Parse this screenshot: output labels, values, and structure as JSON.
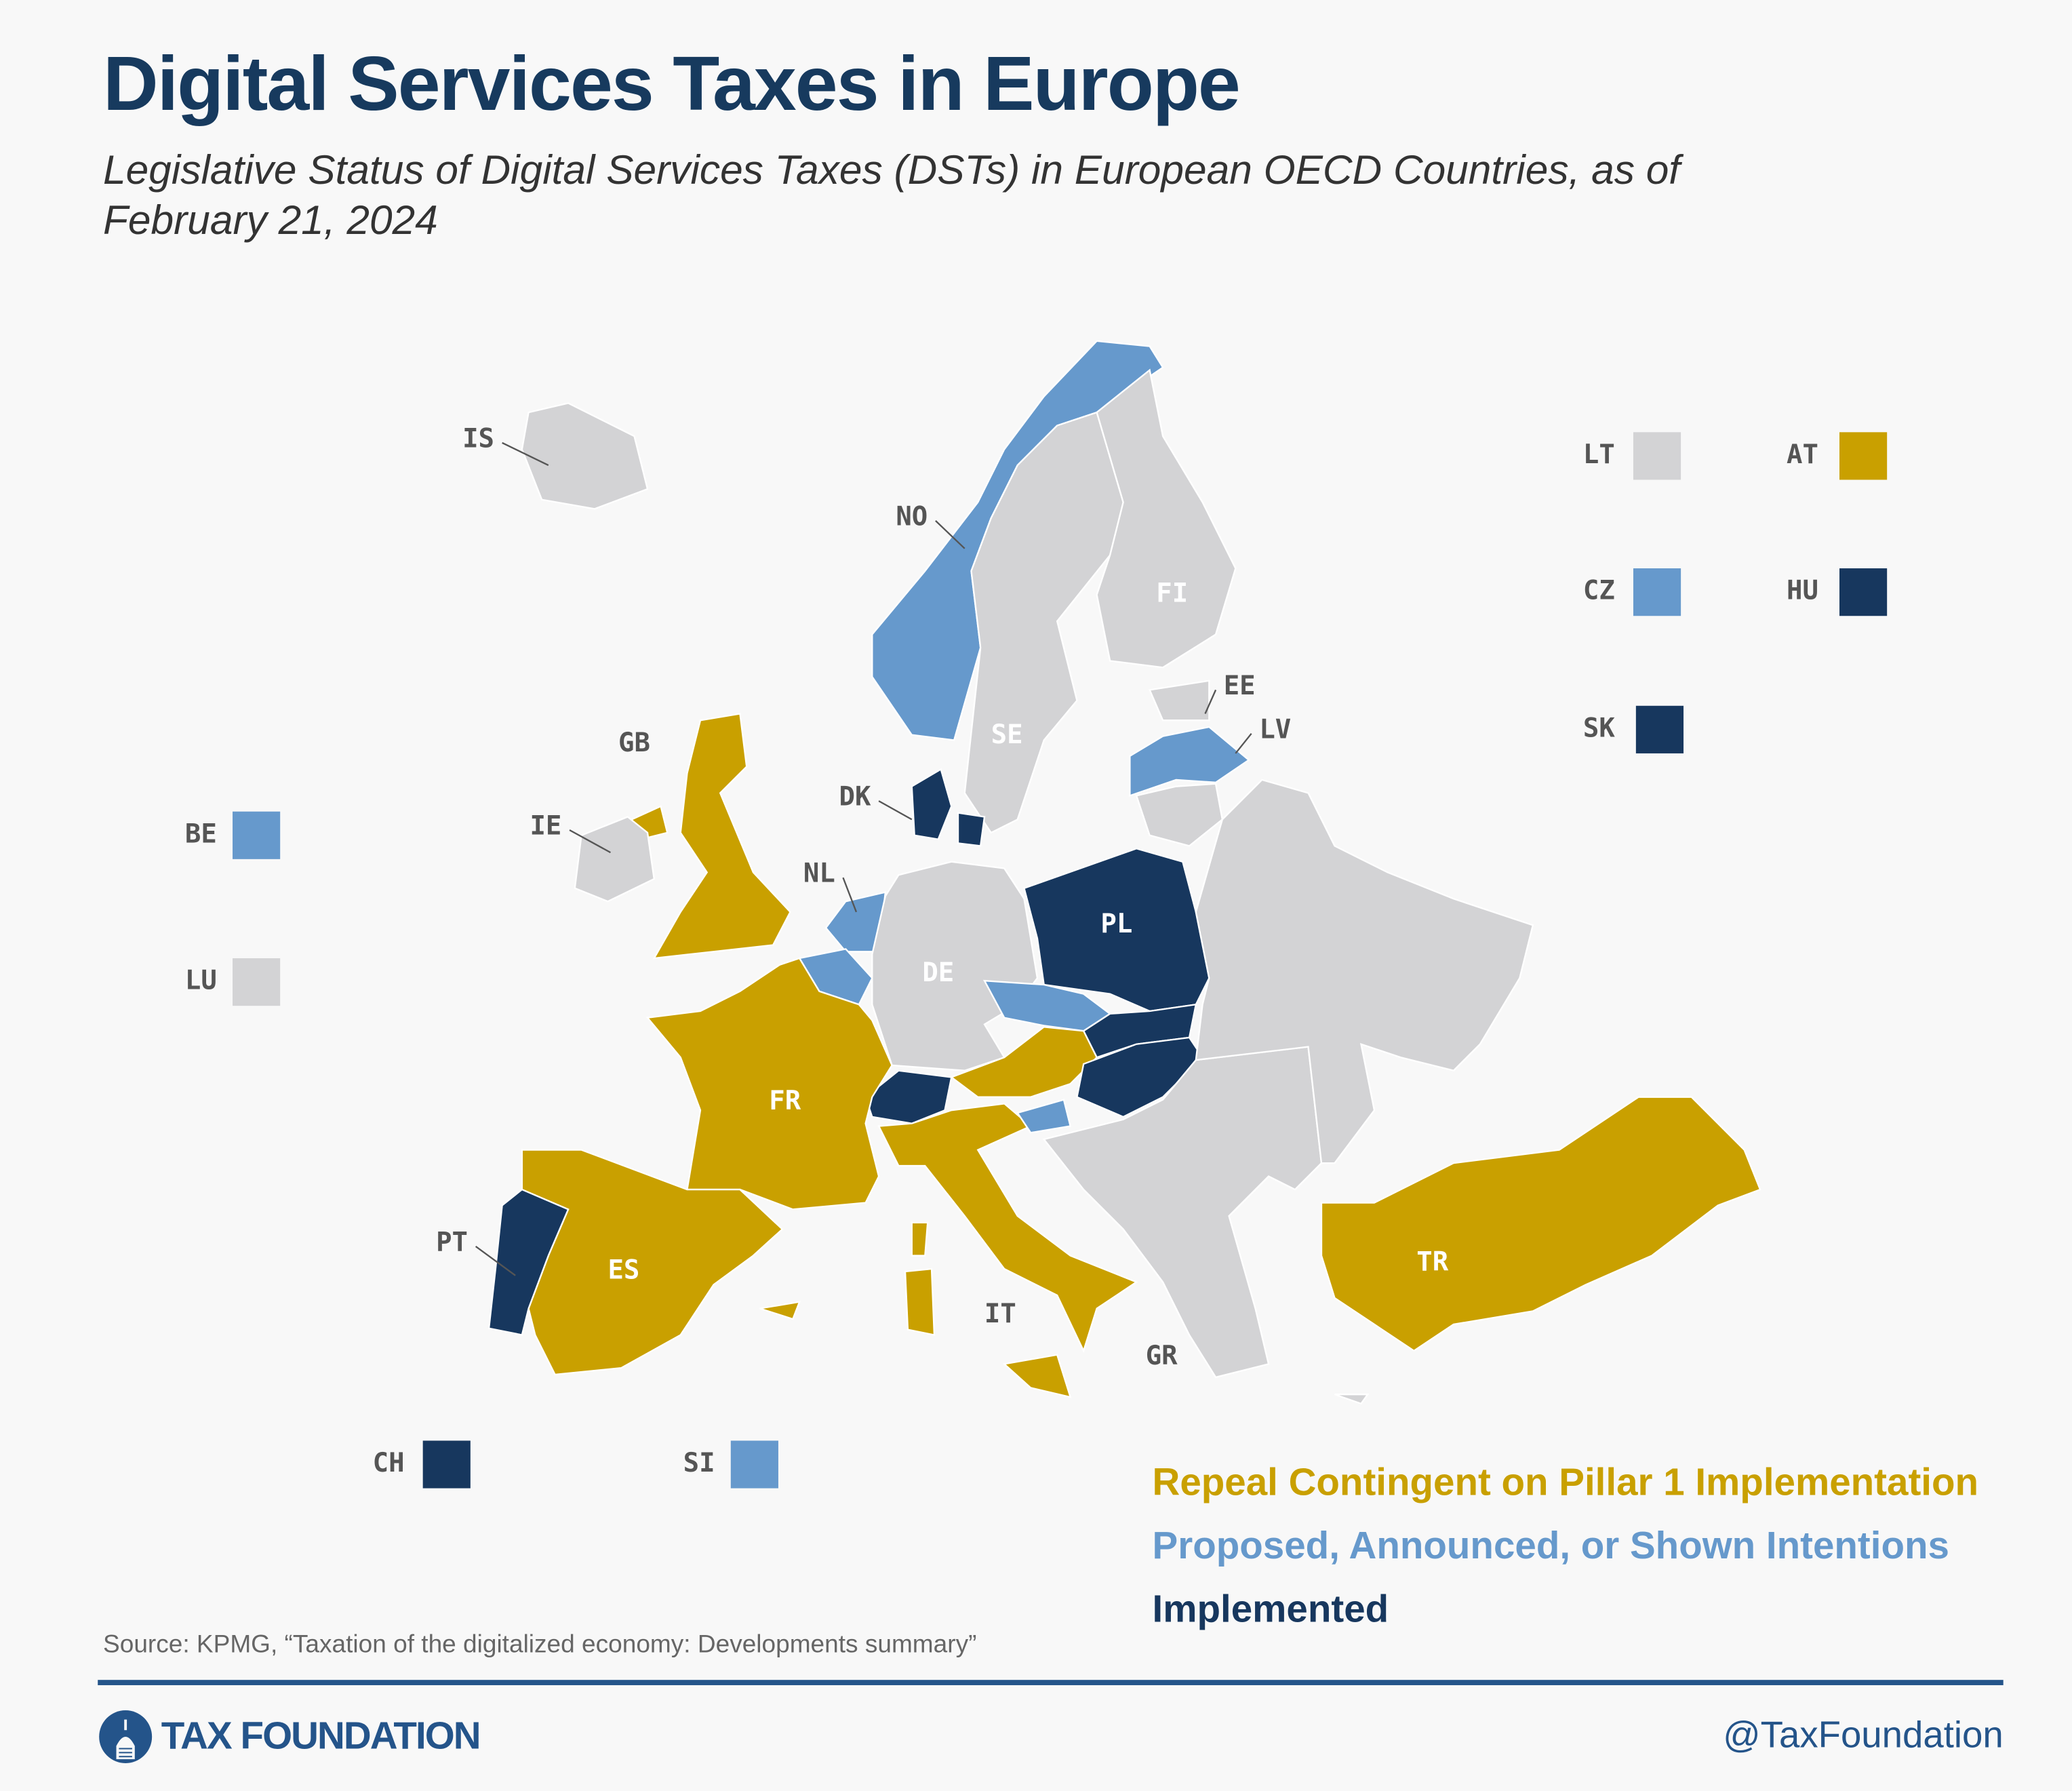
{
  "header": {
    "title": "Digital Services Taxes in Europe",
    "subtitle": "Legislative Status of Digital Services Taxes (DSTs) in European OECD Countries, as of February 21, 2024"
  },
  "colors": {
    "repeal": "#c9a000",
    "proposed": "#6699cc",
    "implemented": "#17375e",
    "none": "#d3d3d5",
    "background": "#f8f8f8"
  },
  "legend": {
    "repeal": "Repeal Contingent on Pillar 1 Implementation",
    "proposed": "Proposed, Announced, or Shown Intentions",
    "implemented": "Implemented"
  },
  "countries": {
    "IS": "none",
    "NO": "proposed",
    "SE": "none",
    "FI": "none",
    "EE": "none",
    "LV": "proposed",
    "LT": "none",
    "GB": "repeal",
    "IE": "none",
    "DK": "implemented",
    "NL": "proposed",
    "BE": "proposed",
    "LU": "none",
    "DE": "none",
    "PL": "implemented",
    "CZ": "proposed",
    "SK": "implemented",
    "AT": "repeal",
    "HU": "implemented",
    "CH": "implemented",
    "FR": "repeal",
    "ES": "repeal",
    "PT": "implemented",
    "IT": "repeal",
    "SI": "proposed",
    "GR": "none",
    "TR": "repeal"
  },
  "map_labels": [
    "IS",
    "NO",
    "FI",
    "SE",
    "EE",
    "LV",
    "GB",
    "IE",
    "DK",
    "NL",
    "PL",
    "DE",
    "FR",
    "PT",
    "ES",
    "IT",
    "GR",
    "TR"
  ],
  "inset_keys": [
    "LT",
    "AT",
    "CZ",
    "HU",
    "SK",
    "BE",
    "LU",
    "CH",
    "SI"
  ],
  "footer": {
    "source": "Source:  KPMG, “Taxation of the digitalized economy: Developments summary”",
    "brand": "TAX FOUNDATION",
    "handle": "@TaxFoundation"
  }
}
